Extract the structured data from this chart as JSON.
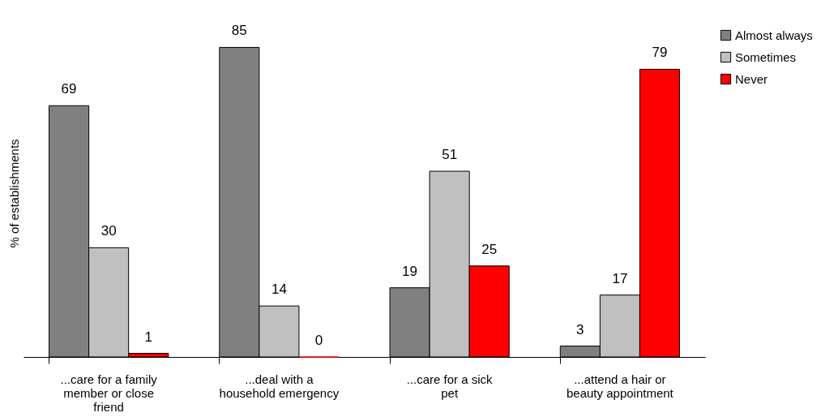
{
  "chart_data": {
    "type": "bar",
    "ylabel": "% of establishments",
    "categories": [
      "...care for a family member or close friend",
      "...deal with a household emergency",
      "...care for a sick pet",
      "...attend a hair or beauty appointment"
    ],
    "series": [
      {
        "name": "Almost always",
        "color": "#808080",
        "values": [
          69,
          85,
          19,
          3
        ]
      },
      {
        "name": "Sometimes",
        "color": "#c0c0c0",
        "values": [
          30,
          14,
          51,
          17
        ]
      },
      {
        "name": "Never",
        "color": "#ff0000",
        "values": [
          1,
          0,
          25,
          79
        ]
      }
    ],
    "data_labels": true,
    "legend": "right",
    "grid": false,
    "tick_labels": "x"
  }
}
